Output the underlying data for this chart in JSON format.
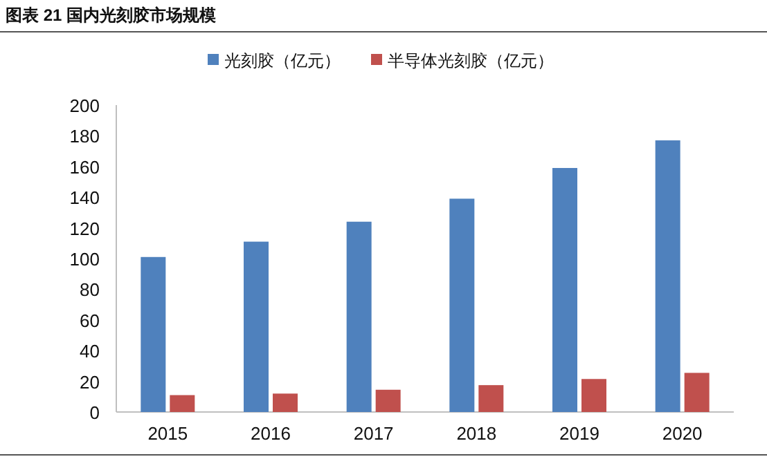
{
  "chart_data": {
    "type": "bar",
    "title": "图表 21 国内光刻胶市场规模",
    "categories": [
      "2015",
      "2016",
      "2017",
      "2018",
      "2019",
      "2020"
    ],
    "series": [
      {
        "name": "光刻胶（亿元）",
        "color": "#4f81bd",
        "values": [
          101,
          111,
          124,
          139,
          159,
          177
        ]
      },
      {
        "name": "半导体光刻胶（亿元）",
        "color": "#c0504d",
        "values": [
          11,
          12,
          14.5,
          17.5,
          21.5,
          25.5
        ]
      }
    ],
    "ylim": [
      0,
      200
    ],
    "yticks": [
      0,
      20,
      40,
      60,
      80,
      100,
      120,
      140,
      160,
      180,
      200
    ],
    "grid": false,
    "legend": "top"
  }
}
